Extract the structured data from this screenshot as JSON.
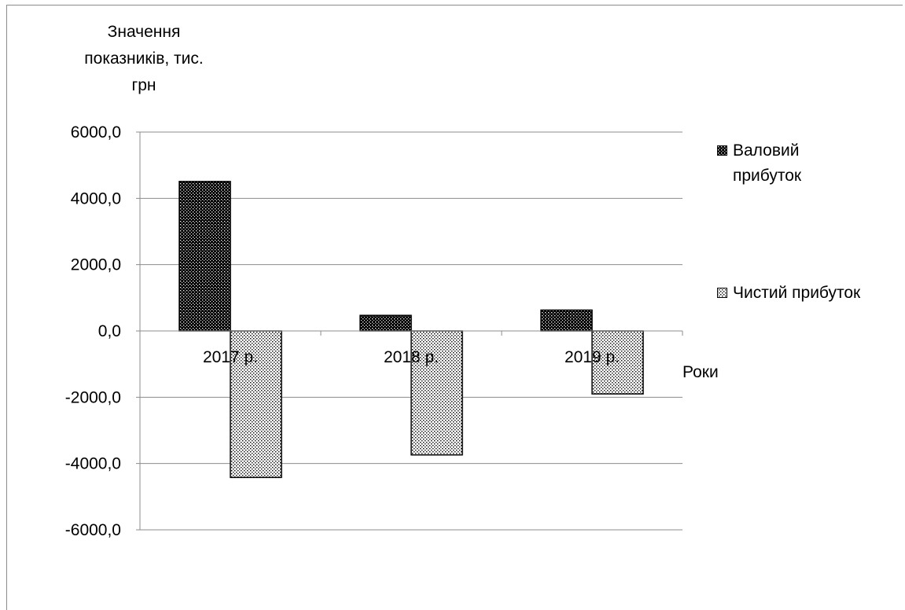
{
  "chart_data": {
    "type": "bar",
    "categories": [
      "2017 р.",
      "2018 р.",
      "2019 р."
    ],
    "series": [
      {
        "name": "Валовий прибуток",
        "values": [
          4510,
          470,
          630
        ],
        "pattern": "dense-dots"
      },
      {
        "name": "Чистий прибуток",
        "values": [
          -4420,
          -3740,
          -1900
        ],
        "pattern": "sparse-dots"
      }
    ],
    "ylabel_lines": [
      "Значення",
      "показників, тис.",
      "грн"
    ],
    "xlabel": "Роки",
    "ylim": [
      -6000,
      6000
    ],
    "yticks": [
      6000,
      4000,
      2000,
      0,
      -2000,
      -4000,
      -6000
    ],
    "ytick_labels": [
      "6000,0",
      "4000,0",
      "2000,0",
      "0,0",
      "-2000,0",
      "-4000,0",
      "-6000,0"
    ],
    "grid": true,
    "legend_position": "right",
    "colors": {
      "bar_fill": "#ffffff",
      "bar_dots": "#000000",
      "gridline": "#8c8c8c",
      "axis": "#8c8c8c"
    }
  }
}
